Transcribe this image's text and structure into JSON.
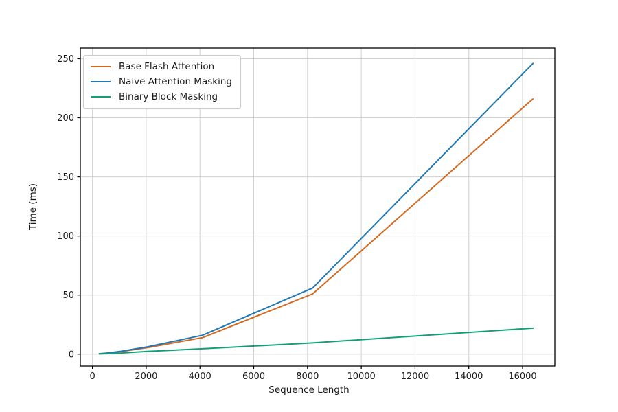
{
  "figure": {
    "background": "#ffffff",
    "plot_border_color": "#000000",
    "tick_color": "#1a1a1a"
  },
  "chart_data": {
    "type": "line",
    "title": "",
    "xlabel": "Sequence Length",
    "ylabel": "Time (ms)",
    "x": [
      256,
      512,
      1024,
      2048,
      4096,
      8192,
      16384
    ],
    "series": [
      {
        "name": "Base Flash Attention",
        "color": "#d2691e",
        "values": [
          0.3,
          0.7,
          2.0,
          5.5,
          14.0,
          51.0,
          216.0
        ]
      },
      {
        "name": "Naive Attention Masking",
        "color": "#1f77b4",
        "values": [
          0.4,
          0.9,
          2.3,
          6.2,
          16.0,
          56.0,
          246.0
        ]
      },
      {
        "name": "Binary Block Masking",
        "color": "#149e77",
        "values": [
          0.2,
          0.4,
          0.9,
          2.3,
          4.6,
          9.5,
          22.0
        ]
      }
    ],
    "xticks": {
      "values": [
        0,
        2000,
        4000,
        6000,
        8000,
        10000,
        12000,
        14000,
        16000
      ],
      "labels": [
        "0",
        "2000",
        "4000",
        "6000",
        "8000",
        "10000",
        "12000",
        "14000",
        "16000"
      ]
    },
    "yticks": {
      "values": [
        0,
        50,
        100,
        150,
        200,
        250
      ],
      "labels": [
        "0",
        "50",
        "100",
        "150",
        "200",
        "250"
      ]
    },
    "xlim": [
      -450,
      17200
    ],
    "ylim": [
      -10,
      259
    ],
    "grid": true,
    "grid_color": "#d0d0d0",
    "line_width": 2,
    "legend": {
      "position": "upper-left",
      "border_color": "#cccccc",
      "background": "#ffffff"
    }
  }
}
